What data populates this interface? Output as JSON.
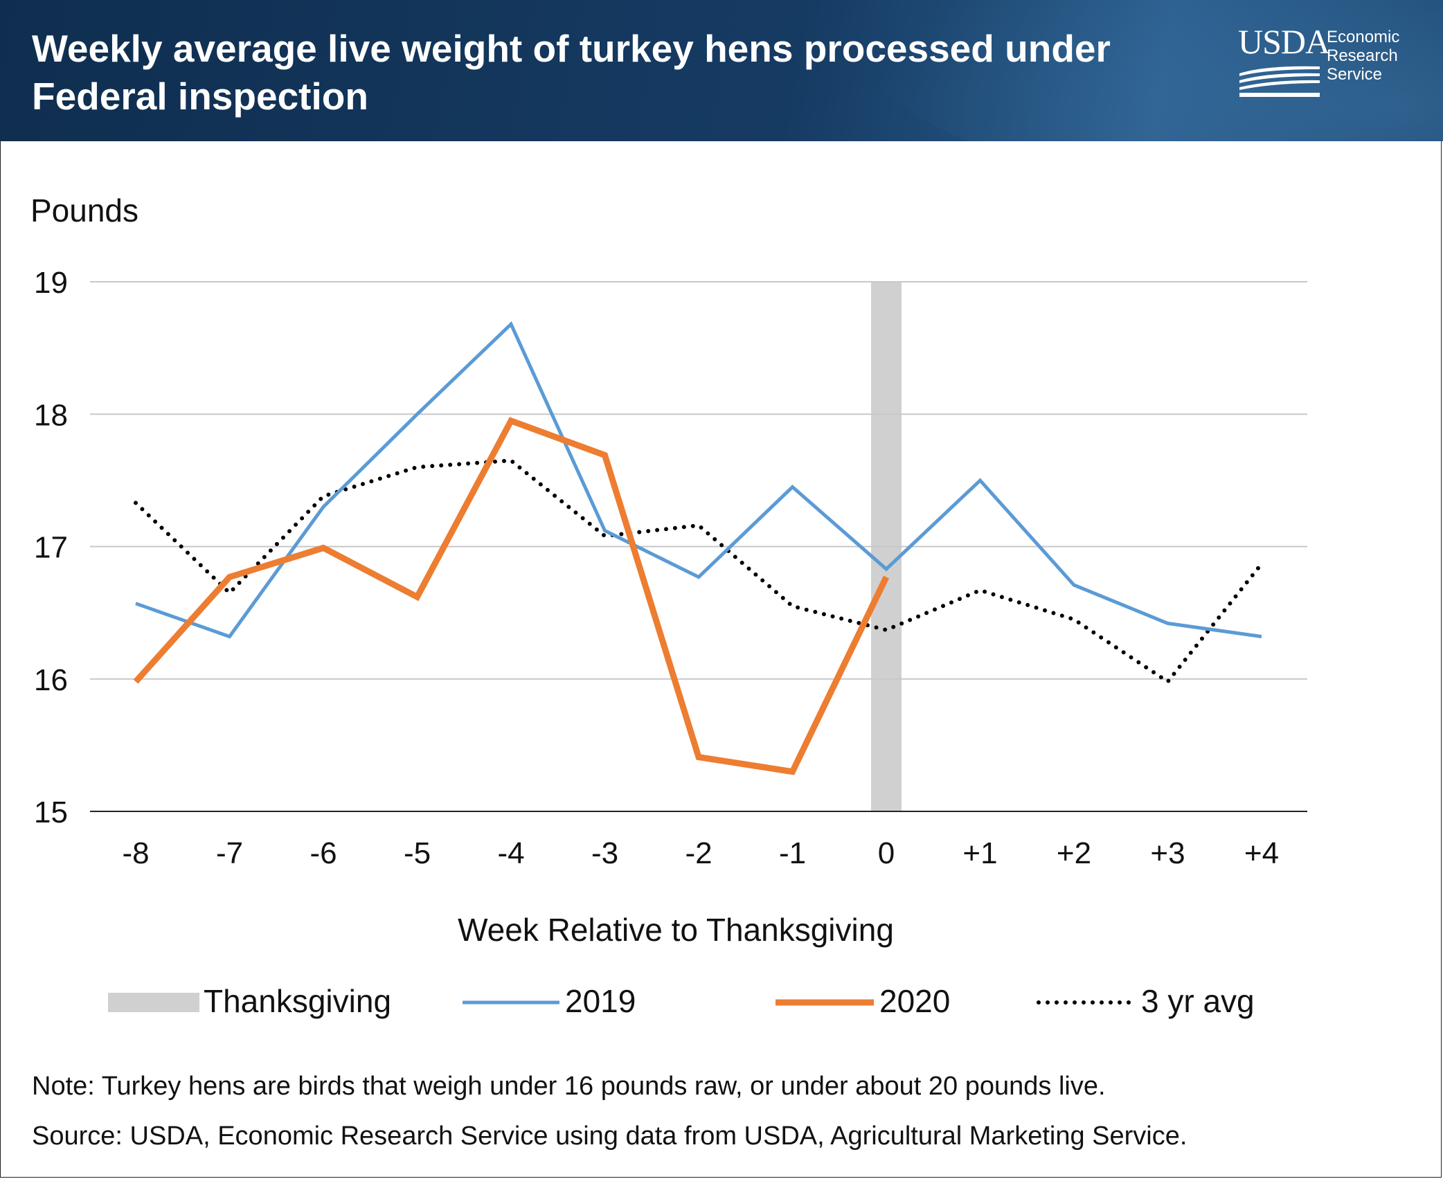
{
  "header": {
    "title": "Weekly average live weight of turkey hens processed under Federal inspection",
    "logo_mark": "USDA",
    "logo_lines": [
      "Economic",
      "Research",
      "Service"
    ]
  },
  "colors": {
    "header_bg": "#163b63",
    "series_2019": "#5b9bd5",
    "series_2020": "#ed7d31",
    "series_avg": "#000000",
    "thanksgiving_band": "#d0d0d0",
    "grid": "#c8c8c8"
  },
  "chart_data": {
    "type": "line",
    "ylabel": "Pounds",
    "xlabel": "Week Relative to Thanksgiving",
    "ylim": [
      15,
      19
    ],
    "yticks": [
      15,
      16,
      17,
      18,
      19
    ],
    "categories": [
      "-8",
      "-7",
      "-6",
      "-5",
      "-4",
      "-3",
      "-2",
      "-1",
      "0",
      "+1",
      "+2",
      "+3",
      "+4"
    ],
    "highlight": {
      "name": "Thanksgiving",
      "category": "0"
    },
    "grid": "horizontal",
    "legend_position": "bottom",
    "series": [
      {
        "name": "2019",
        "style": "solid",
        "values": [
          16.57,
          16.32,
          17.3,
          18.0,
          18.68,
          17.12,
          16.77,
          17.45,
          16.83,
          17.5,
          16.71,
          16.42,
          16.32
        ]
      },
      {
        "name": "2020",
        "style": "solid-thick",
        "values": [
          15.98,
          16.77,
          16.99,
          16.62,
          17.95,
          17.69,
          15.41,
          15.3,
          16.77,
          null,
          null,
          null,
          null
        ]
      },
      {
        "name": "3 yr avg",
        "style": "dotted",
        "values": [
          17.33,
          16.65,
          17.38,
          17.6,
          17.65,
          17.08,
          17.16,
          16.55,
          16.37,
          16.67,
          16.45,
          15.98,
          16.87
        ]
      }
    ]
  },
  "legend": {
    "thanksgiving": "Thanksgiving",
    "s2019": "2019",
    "s2020": "2020",
    "avg": "3 yr avg"
  },
  "footer": {
    "note": "Note: Turkey hens are birds that weigh under 16 pounds raw, or under about 20 pounds live.",
    "source": "Source: USDA, Economic Research Service using data from USDA, Agricultural Marketing Service."
  }
}
